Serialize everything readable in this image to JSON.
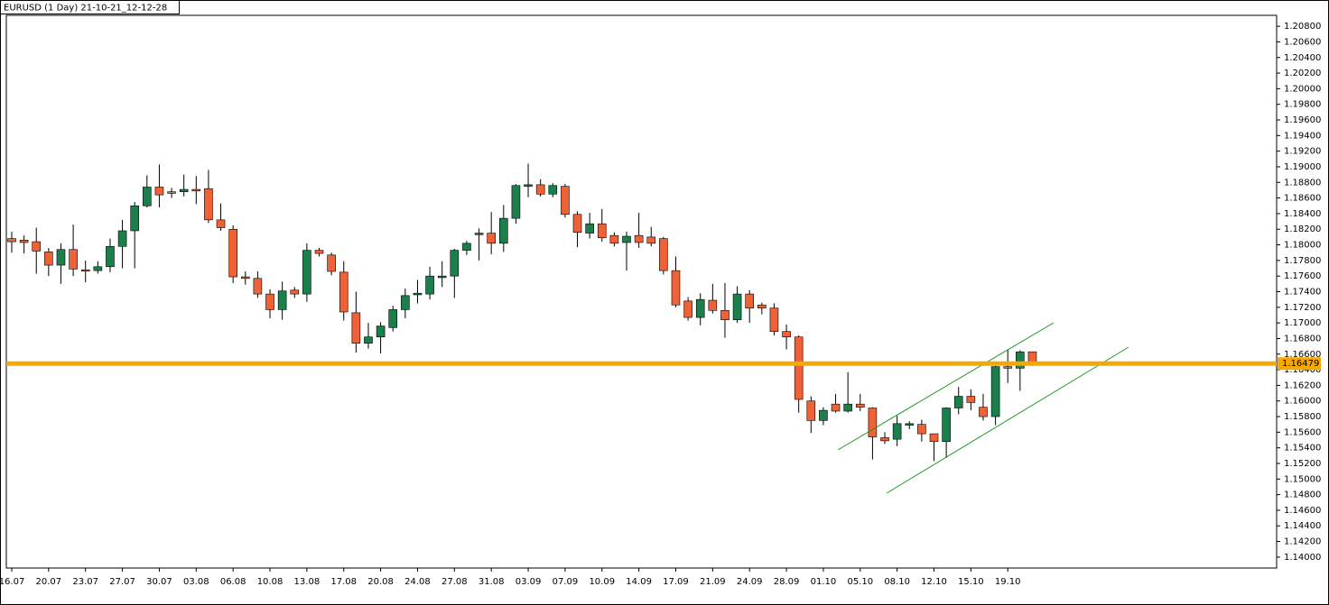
{
  "chart_data": {
    "type": "candlestick",
    "title": "EURUSD (1 Day) 21-10-21_12-12-28",
    "categories": [
      "16.07",
      null,
      null,
      "20.07",
      null,
      null,
      "23.07",
      null,
      null,
      "27.07",
      null,
      null,
      "30.07",
      null,
      null,
      "03.08",
      null,
      null,
      "06.08",
      null,
      null,
      "10.08",
      null,
      null,
      "13.08",
      null,
      null,
      "17.08",
      null,
      null,
      "20.08",
      null,
      null,
      "24.08",
      null,
      null,
      "27.08",
      null,
      null,
      "31.08",
      null,
      null,
      "03.09",
      null,
      null,
      "07.09",
      null,
      null,
      "10.09",
      null,
      null,
      "14.09",
      null,
      null,
      "17.09",
      null,
      null,
      "21.09",
      null,
      null,
      "24.09",
      null,
      null,
      "28.09",
      null,
      null,
      "01.10",
      null,
      null,
      "05.10",
      null,
      null,
      "08.10",
      null,
      null,
      "12.10",
      null,
      null,
      "15.10",
      null,
      null,
      "19.10",
      null,
      null
    ],
    "open": [
      1.1808,
      1.1806,
      1.1804,
      1.1791,
      1.1774,
      1.1794,
      1.1768,
      1.1767,
      1.1772,
      1.1798,
      1.1818,
      1.185,
      1.1874,
      1.1868,
      1.1868,
      1.1871,
      1.1872,
      1.1832,
      1.182,
      1.1759,
      1.1757,
      1.1737,
      1.1717,
      1.1742,
      1.1737,
      1.1793,
      1.1787,
      1.1765,
      1.1713,
      1.1674,
      1.1682,
      1.1694,
      1.1717,
      1.1736,
      1.1737,
      1.1758,
      1.176,
      1.1793,
      1.1813,
      1.1815,
      1.1802,
      1.1834,
      1.1875,
      1.1877,
      1.1865,
      1.1875,
      1.1839,
      1.1815,
      1.1827,
      1.1812,
      1.1803,
      1.1812,
      1.181,
      1.1808,
      1.1767,
      1.1728,
      1.1707,
      1.1729,
      1.1716,
      1.1704,
      1.1737,
      1.1723,
      1.1719,
      1.1689,
      1.1682,
      1.16,
      1.1575,
      1.1596,
      1.1587,
      1.1596,
      1.1591,
      1.1553,
      1.1551,
      1.1569,
      1.157,
      1.1558,
      1.1548,
      1.1591,
      1.1606,
      1.1592,
      1.158,
      1.1644,
      1.1642,
      1.1663
    ],
    "high": [
      1.1817,
      1.1812,
      1.1822,
      1.1796,
      1.1802,
      1.1826,
      1.178,
      1.1779,
      1.1808,
      1.1832,
      1.1855,
      1.1889,
      1.1903,
      1.1873,
      1.189,
      1.1888,
      1.1896,
      1.1853,
      1.1825,
      1.1766,
      1.1766,
      1.1743,
      1.1753,
      1.1746,
      1.1802,
      1.1796,
      1.179,
      1.1779,
      1.174,
      1.17,
      1.1701,
      1.1722,
      1.1744,
      1.1755,
      1.1772,
      1.1779,
      1.1795,
      1.1805,
      1.1821,
      1.1842,
      1.1851,
      1.1878,
      1.1904,
      1.1884,
      1.1879,
      1.1878,
      1.1843,
      1.1841,
      1.1846,
      1.1816,
      1.1817,
      1.1841,
      1.1823,
      1.181,
      1.1785,
      1.1733,
      1.1738,
      1.175,
      1.1751,
      1.1747,
      1.1742,
      1.1726,
      1.1725,
      1.1698,
      1.1684,
      1.1606,
      1.1592,
      1.1609,
      1.1637,
      1.1609,
      1.1592,
      1.156,
      1.1581,
      1.1574,
      1.1576,
      1.1558,
      1.1592,
      1.1618,
      1.1615,
      1.1609,
      1.1645,
      1.1666,
      1.1665,
      1.1663
    ],
    "low": [
      1.179,
      1.1789,
      1.1763,
      1.176,
      1.175,
      1.176,
      1.1752,
      1.1763,
      1.1765,
      1.177,
      1.177,
      1.1848,
      1.1848,
      1.186,
      1.1862,
      1.1852,
      1.1828,
      1.1818,
      1.1751,
      1.1749,
      1.1732,
      1.1706,
      1.1704,
      1.1732,
      1.1727,
      1.1785,
      1.1761,
      1.1703,
      1.1662,
      1.1667,
      1.1661,
      1.1689,
      1.1706,
      1.1725,
      1.173,
      1.1746,
      1.1732,
      1.1787,
      1.178,
      1.1788,
      1.1791,
      1.1827,
      1.1861,
      1.1862,
      1.1861,
      1.1835,
      1.1797,
      1.1808,
      1.1804,
      1.1798,
      1.1767,
      1.1796,
      1.1798,
      1.1762,
      1.172,
      1.1703,
      1.1697,
      1.1712,
      1.1681,
      1.17,
      1.17,
      1.1711,
      1.1684,
      1.1666,
      1.1585,
      1.1559,
      1.1569,
      1.1585,
      1.1585,
      1.1587,
      1.1525,
      1.1545,
      1.1542,
      1.1564,
      1.1548,
      1.1523,
      1.1527,
      1.1583,
      1.1588,
      1.1575,
      1.1569,
      1.1623,
      1.1613,
      1.1645
    ],
    "close": [
      1.1804,
      1.1803,
      1.1792,
      1.1774,
      1.1794,
      1.1769,
      1.1767,
      1.1772,
      1.1798,
      1.1818,
      1.185,
      1.1874,
      1.1864,
      1.1866,
      1.1871,
      1.1869,
      1.1832,
      1.1822,
      1.1759,
      1.1757,
      1.1737,
      1.1717,
      1.1741,
      1.1737,
      1.1793,
      1.1789,
      1.1766,
      1.1714,
      1.1674,
      1.1682,
      1.1696,
      1.1717,
      1.1735,
      1.1738,
      1.176,
      1.176,
      1.1793,
      1.1802,
      1.1815,
      1.1802,
      1.1834,
      1.1876,
      1.1877,
      1.1865,
      1.1876,
      1.1839,
      1.1816,
      1.1827,
      1.1809,
      1.1802,
      1.1811,
      1.1803,
      1.1802,
      1.1767,
      1.1723,
      1.1707,
      1.173,
      1.1716,
      1.1704,
      1.1737,
      1.1719,
      1.1719,
      1.1689,
      1.1682,
      1.1602,
      1.1575,
      1.1588,
      1.1587,
      1.1596,
      1.1592,
      1.1554,
      1.1549,
      1.1571,
      1.1571,
      1.1558,
      1.1548,
      1.1591,
      1.1606,
      1.1598,
      1.158,
      1.1644,
      1.1642,
      1.1663,
      1.16479
    ],
    "up_color": "#1b7f4c",
    "down_color": "#ef6136",
    "current_price": {
      "value": 1.16479,
      "label": "1.16479"
    },
    "current_price_color": "#f5a800",
    "ylim": [
      1.1386,
      1.2094
    ],
    "yticks": [
      {
        "value": 1.14,
        "label": "1.14000"
      },
      {
        "value": 1.142,
        "label": "1.14200"
      },
      {
        "value": 1.144,
        "label": "1.14400"
      },
      {
        "value": 1.146,
        "label": "1.14600"
      },
      {
        "value": 1.148,
        "label": "1.14800"
      },
      {
        "value": 1.15,
        "label": "1.15000"
      },
      {
        "value": 1.152,
        "label": "1.15200"
      },
      {
        "value": 1.154,
        "label": "1.15400"
      },
      {
        "value": 1.156,
        "label": "1.15600"
      },
      {
        "value": 1.158,
        "label": "1.15800"
      },
      {
        "value": 1.16,
        "label": "1.16000"
      },
      {
        "value": 1.162,
        "label": "1.16200"
      },
      {
        "value": 1.164,
        "label": "1.16400"
      },
      {
        "value": 1.166,
        "label": "1.16600"
      },
      {
        "value": 1.168,
        "label": "1.16800"
      },
      {
        "value": 1.17,
        "label": "1.17000"
      },
      {
        "value": 1.172,
        "label": "1.17200"
      },
      {
        "value": 1.174,
        "label": "1.17400"
      },
      {
        "value": 1.176,
        "label": "1.17600"
      },
      {
        "value": 1.178,
        "label": "1.17800"
      },
      {
        "value": 1.18,
        "label": "1.18000"
      },
      {
        "value": 1.182,
        "label": "1.18200"
      },
      {
        "value": 1.184,
        "label": "1.18400"
      },
      {
        "value": 1.186,
        "label": "1.18600"
      },
      {
        "value": 1.188,
        "label": "1.18800"
      },
      {
        "value": 1.19,
        "label": "1.19000"
      },
      {
        "value": 1.192,
        "label": "1.19200"
      },
      {
        "value": 1.194,
        "label": "1.19400"
      },
      {
        "value": 1.196,
        "label": "1.19600"
      },
      {
        "value": 1.198,
        "label": "1.19800"
      },
      {
        "value": 1.2,
        "label": "1.20000"
      },
      {
        "value": 1.202,
        "label": "1.20200"
      },
      {
        "value": 1.204,
        "label": "1.20400"
      },
      {
        "value": 1.206,
        "label": "1.20600"
      },
      {
        "value": 1.208,
        "label": "1.20800"
      }
    ],
    "grid": false
  }
}
